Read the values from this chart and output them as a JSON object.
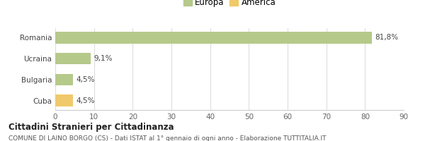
{
  "categories": [
    "Cuba",
    "Bulgaria",
    "Ucraina",
    "Romania"
  ],
  "values": [
    4.5,
    4.5,
    9.1,
    81.8
  ],
  "labels": [
    "4,5%",
    "4,5%",
    "9,1%",
    "81,8%"
  ],
  "colors": [
    "#f0c96a",
    "#b5c98a",
    "#b5c98a",
    "#b5c98a"
  ],
  "europa_color": "#b5c98a",
  "america_color": "#f0c96a",
  "xlim": [
    0,
    90
  ],
  "xticks": [
    0,
    10,
    20,
    30,
    40,
    50,
    60,
    70,
    80,
    90
  ],
  "title": "Cittadini Stranieri per Cittadinanza",
  "subtitle": "COMUNE DI LAINO BORGO (CS) - Dati ISTAT al 1° gennaio di ogni anno - Elaborazione TUTTITALIA.IT",
  "legend_europa": "Europa",
  "legend_america": "America",
  "bar_height": 0.55,
  "background_color": "#ffffff"
}
